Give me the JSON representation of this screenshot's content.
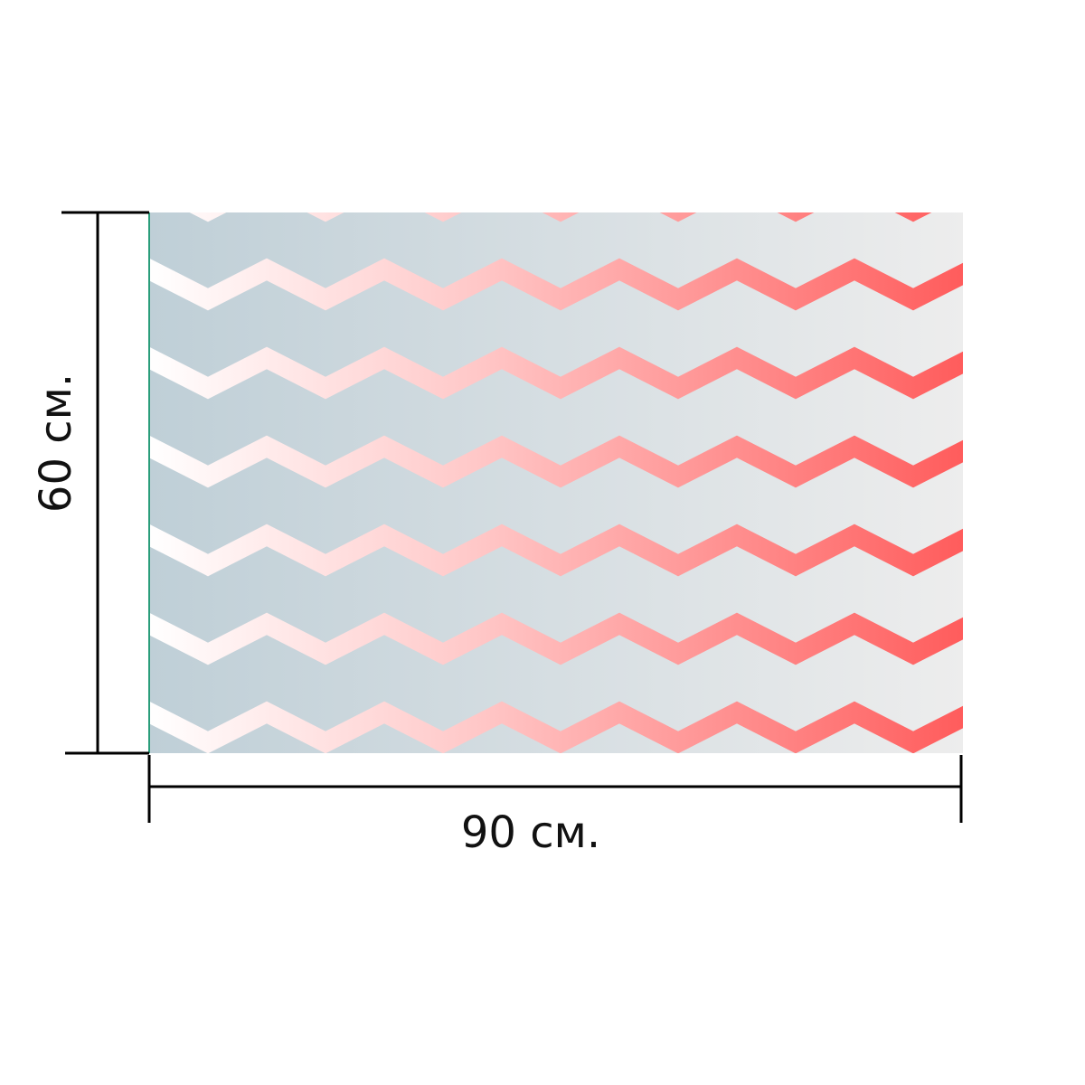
{
  "width_label": "90 см.",
  "height_label": "60 см."
}
